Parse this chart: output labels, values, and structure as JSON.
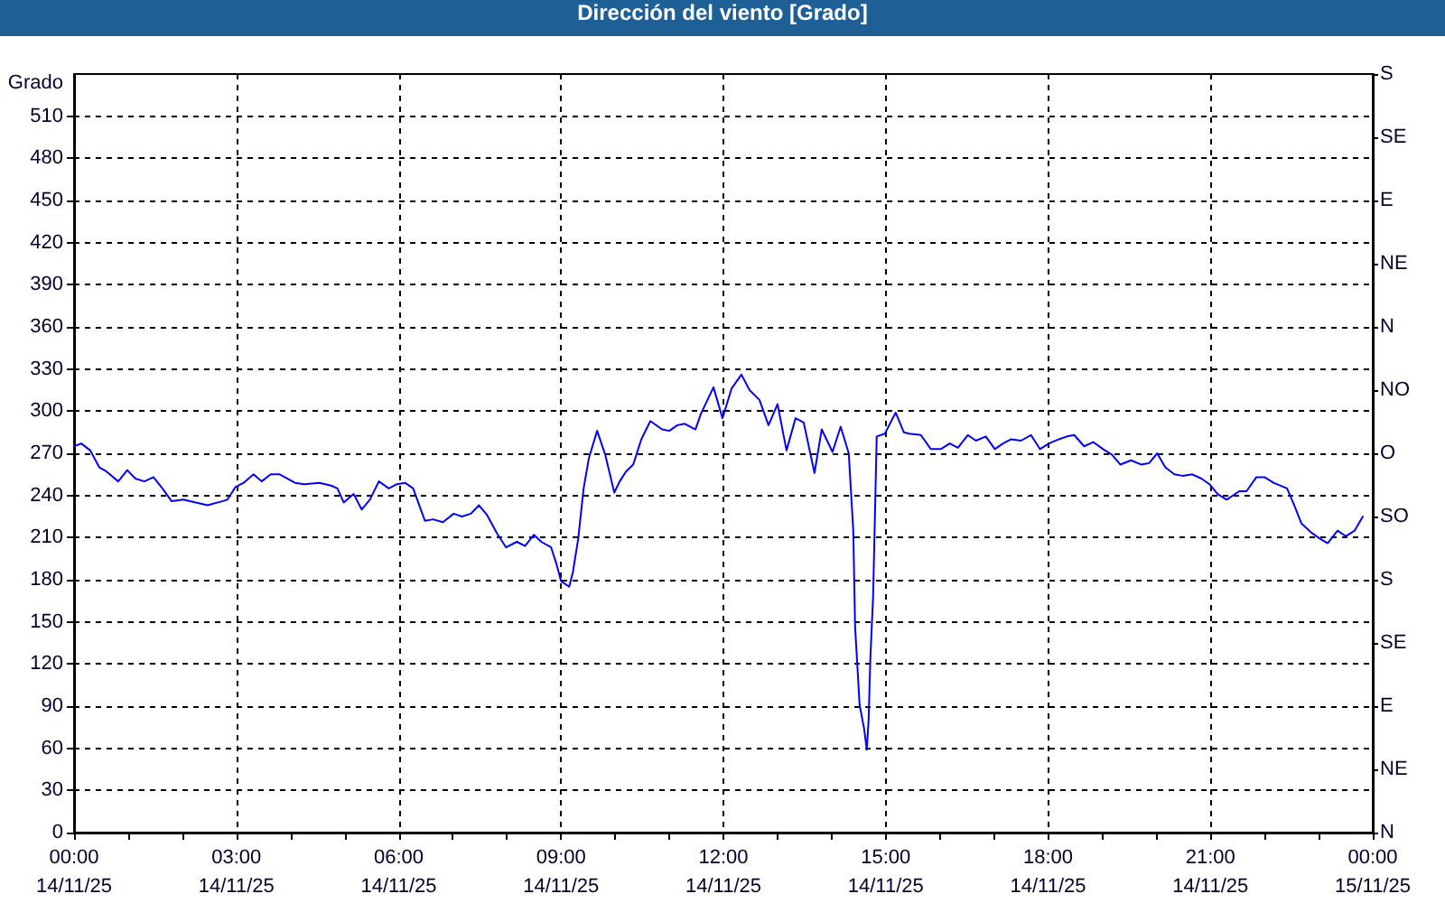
{
  "chart_data": {
    "type": "line",
    "title": "Dirección del viento [Grado]",
    "ylabel": "Grado",
    "x": [
      "--11-14T00:00",
      "--11-14T00:08",
      "--11-14T00:18",
      "--11-14T00:28",
      "--11-14T00:36",
      "--11-14T00:49",
      "--11-14T00:59",
      "--11-14T01:08",
      "--11-14T01:18",
      "--11-14T01:28",
      "--11-14T01:38",
      "--11-14T01:48",
      "--11-14T02:01",
      "--11-14T02:15",
      "--11-14T02:28",
      "--11-14T02:45",
      "--11-14T02:50",
      "--11-14T02:59",
      "--11-14T03:08",
      "--11-14T03:19",
      "--11-14T03:28",
      "--11-14T03:38",
      "--11-14T03:48",
      "--11-14T04:05",
      "--11-14T04:15",
      "--11-14T04:32",
      "--11-14T04:45",
      "--11-14T04:52",
      "--11-14T04:59",
      "--11-14T05:10",
      "--11-14T05:19",
      "--11-14T05:28",
      "--11-14T05:38",
      "--11-14T05:49",
      "--11-14T05:58",
      "--11-14T06:07",
      "--11-14T06:16",
      "--11-14T06:29",
      "--11-14T06:38",
      "--11-14T06:49",
      "--11-14T07:01",
      "--11-14T07:10",
      "--11-14T07:20",
      "--11-14T07:29",
      "--11-14T07:38",
      "--11-14T07:49",
      "--11-14T07:59",
      "--11-14T08:11",
      "--11-14T08:20",
      "--11-14T08:30",
      "--11-14T08:38",
      "--11-14T08:49",
      "--11-14T08:55",
      "--11-14T09:00",
      "--11-14T09:09",
      "--11-14T09:13",
      "--11-14T09:19",
      "--11-14T09:25",
      "--11-14T09:31",
      "--11-14T09:40",
      "--11-14T09:49",
      "--11-14T09:59",
      "--11-14T10:05",
      "--11-14T10:12",
      "--11-14T10:20",
      "--11-14T10:29",
      "--11-14T10:39",
      "--11-14T10:52",
      "--11-14T11:00",
      "--11-14T11:09",
      "--11-14T11:17",
      "--11-14T11:29",
      "--11-14T11:35",
      "--11-14T11:49",
      "--11-14T11:59",
      "--11-14T12:09",
      "--11-14T12:20",
      "--11-14T12:29",
      "--11-14T12:40",
      "--11-14T12:50",
      "--11-14T13:00",
      "--11-14T13:10",
      "--11-14T13:20",
      "--11-14T13:29",
      "--11-14T13:36",
      "--11-14T13:41",
      "--11-14T13:49",
      "--11-14T14:01",
      "--11-14T14:10",
      "--11-14T14:19",
      "--11-14T14:24",
      "--11-14T14:26",
      "--11-14T14:31",
      "--11-14T14:36",
      "--11-14T14:39",
      "--11-14T14:41",
      "--11-14T14:43",
      "--11-14T14:46",
      "--11-14T14:50",
      "--11-14T14:59",
      "--11-14T15:11",
      "--11-14T15:20",
      "--11-14T15:26",
      "--11-14T15:39",
      "--11-14T15:50",
      "--11-14T16:01",
      "--11-14T16:11",
      "--11-14T16:20",
      "--11-14T16:31",
      "--11-14T16:40",
      "--11-14T16:51",
      "--11-14T17:01",
      "--11-14T17:10",
      "--11-14T17:19",
      "--11-14T17:30",
      "--11-14T17:41",
      "--11-14T17:51",
      "--11-14T18:01",
      "--11-14T18:12",
      "--11-14T18:21",
      "--11-14T18:29",
      "--11-14T18:40",
      "--11-14T18:50",
      "--11-14T19:01",
      "--11-14T19:11",
      "--11-14T19:20",
      "--11-14T19:32",
      "--11-14T19:43",
      "--11-14T19:52",
      "--11-14T20:01",
      "--11-14T20:10",
      "--11-14T20:20",
      "--11-14T20:29",
      "--11-14T20:40",
      "--11-14T20:50",
      "--11-14T20:59",
      "--11-14T21:08",
      "--11-14T21:18",
      "--11-14T21:32",
      "--11-14T21:40",
      "--11-14T21:51",
      "--11-14T22:00",
      "--11-14T22:10",
      "--11-14T22:25",
      "--11-14T22:33",
      "--11-14T22:41",
      "--11-14T22:53",
      "--11-14T23:02",
      "--11-14T23:10",
      "--11-14T23:21",
      "--11-14T23:30",
      "--11-14T23:40",
      "--11-14T23:49"
    ],
    "values": [
      275,
      277,
      272,
      260,
      257,
      250,
      258,
      252,
      250,
      253,
      245,
      236,
      237,
      235,
      233,
      236,
      237,
      246,
      249,
      255,
      250,
      255,
      255,
      249,
      248,
      249,
      247,
      245,
      235,
      241,
      230,
      237,
      250,
      245,
      248,
      249,
      245,
      222,
      223,
      221,
      227,
      225,
      227,
      233,
      226,
      213,
      203,
      207,
      204,
      212,
      207,
      203,
      191,
      179,
      175,
      185,
      209,
      245,
      267,
      286,
      269,
      242,
      250,
      257,
      262,
      280,
      293,
      287,
      286,
      290,
      291,
      287,
      298,
      317,
      295,
      316,
      326,
      315,
      308,
      290,
      305,
      272,
      295,
      292,
      271,
      256,
      287,
      271,
      289,
      270,
      215,
      147,
      91,
      74,
      59,
      80,
      125,
      168,
      282,
      284,
      299,
      285,
      284,
      283,
      273,
      273,
      277,
      274,
      283,
      279,
      282,
      273,
      277,
      280,
      279,
      283,
      273,
      277,
      280,
      282,
      283,
      275,
      278,
      273,
      269,
      262,
      265,
      262,
      263,
      270,
      260,
      255,
      254,
      255,
      252,
      248,
      241,
      237,
      243,
      243,
      253,
      253,
      249,
      245,
      233,
      220,
      213,
      209,
      206,
      215,
      211,
      215,
      225
    ],
    "color": "#0000ff",
    "xlim": [
      "--11-14T00:00",
      "--11-15T00:00"
    ],
    "xticks": [
      {
        "value": "--11-14T00:00",
        "label": "00:00\n14/11/25"
      },
      {
        "value": "--11-14T01:00",
        "label": null
      },
      {
        "value": "--11-14T02:00",
        "label": null
      },
      {
        "value": "--11-14T03:00",
        "label": "03:00\n14/11/25"
      },
      {
        "value": "--11-14T04:00",
        "label": null
      },
      {
        "value": "--11-14T05:00",
        "label": null
      },
      {
        "value": "--11-14T06:00",
        "label": "06:00\n14/11/25"
      },
      {
        "value": "--11-14T07:00",
        "label": null
      },
      {
        "value": "--11-14T08:00",
        "label": null
      },
      {
        "value": "--11-14T09:00",
        "label": "09:00\n14/11/25"
      },
      {
        "value": "--11-14T10:00",
        "label": null
      },
      {
        "value": "--11-14T11:00",
        "label": null
      },
      {
        "value": "--11-14T12:00",
        "label": "12:00\n14/11/25"
      },
      {
        "value": "--11-14T13:00",
        "label": null
      },
      {
        "value": "--11-14T14:00",
        "label": null
      },
      {
        "value": "--11-14T15:00",
        "label": "15:00\n14/11/25"
      },
      {
        "value": "--11-14T16:00",
        "label": null
      },
      {
        "value": "--11-14T17:00",
        "label": null
      },
      {
        "value": "--11-14T18:00",
        "label": "18:00\n14/11/25"
      },
      {
        "value": "--11-14T19:00",
        "label": null
      },
      {
        "value": "--11-14T20:00",
        "label": null
      },
      {
        "value": "--11-14T21:00",
        "label": "21:00\n14/11/25"
      },
      {
        "value": "--11-14T22:00",
        "label": null
      },
      {
        "value": "--11-14T23:00",
        "label": null
      },
      {
        "value": "--11-15T00:00",
        "label": "00:00\n15/11/25"
      }
    ],
    "ylim": [
      0,
      540
    ],
    "yticks": [
      0,
      30,
      60,
      90,
      120,
      150,
      180,
      210,
      240,
      270,
      300,
      330,
      360,
      390,
      420,
      450,
      480,
      510
    ],
    "y2_categories": [
      "S",
      "SE",
      "E",
      "NE",
      "N",
      "NO",
      "O",
      "SO",
      "S",
      "SE",
      "E",
      "NE",
      "N"
    ],
    "grid": true
  }
}
